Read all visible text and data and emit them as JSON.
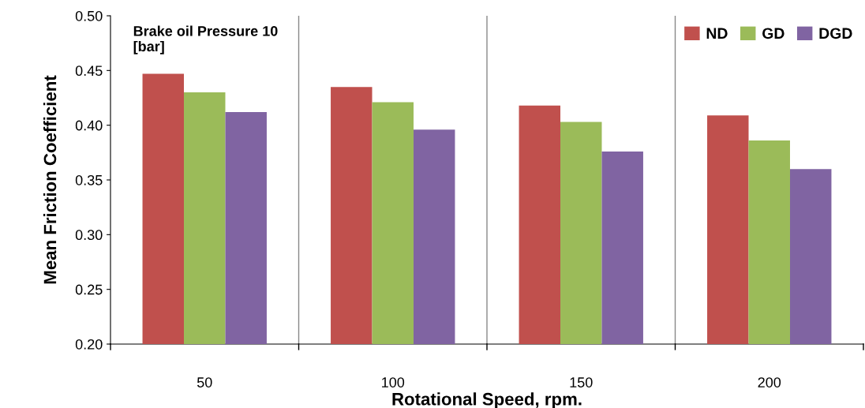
{
  "chart_data": {
    "type": "bar",
    "xlabel": "Rotational Speed, rpm.",
    "ylabel": "Mean Friction Coefficient",
    "categories": [
      "50",
      "100",
      "150",
      "200"
    ],
    "series": [
      {
        "name": "ND",
        "color": "#c0504d",
        "values": [
          0.447,
          0.435,
          0.418,
          0.409
        ]
      },
      {
        "name": "GD",
        "color": "#9bbb59",
        "values": [
          0.43,
          0.421,
          0.403,
          0.386
        ]
      },
      {
        "name": "DGD",
        "color": "#8064a2",
        "values": [
          0.412,
          0.396,
          0.376,
          0.36
        ]
      }
    ],
    "ylim": [
      0.2,
      0.5
    ],
    "yticks": [
      {
        "value": 0.2,
        "label": "0.20"
      },
      {
        "value": 0.25,
        "label": "0.25"
      },
      {
        "value": 0.3,
        "label": "0.30"
      },
      {
        "value": 0.35,
        "label": "0.35"
      },
      {
        "value": 0.4,
        "label": "0.40"
      },
      {
        "value": 0.45,
        "label": "0.45"
      },
      {
        "value": 0.5,
        "label": "0.50"
      }
    ],
    "grid": "x",
    "legend": "top right",
    "annotations": [
      "Brake oil Pressure 10\n[bar]"
    ]
  }
}
